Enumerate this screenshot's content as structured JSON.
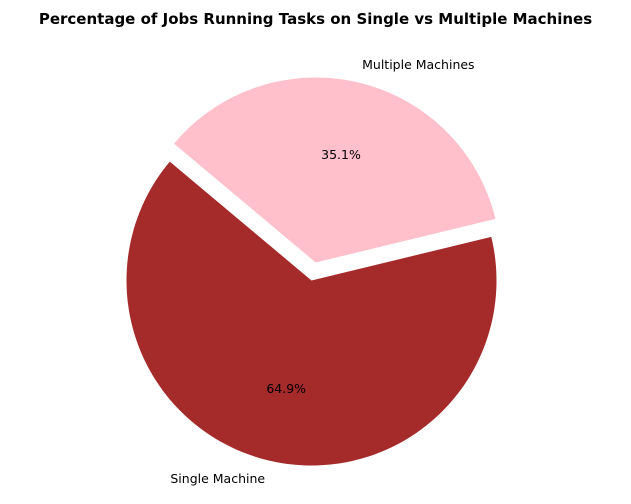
{
  "chart_data": {
    "type": "pie",
    "title": "Percentage of Jobs Running Tasks on Single vs Multiple Machines",
    "slices": [
      {
        "label": "Single Machine",
        "value": 64.9,
        "pct_label": "64.9%",
        "color": "#a52a2a",
        "exploded": false
      },
      {
        "label": "Multiple Machines",
        "value": 35.1,
        "pct_label": "35.1%",
        "color": "#ffc0cb",
        "exploded": true
      }
    ],
    "start_angle_deg": 140,
    "counterclock": true,
    "legend": "none"
  }
}
